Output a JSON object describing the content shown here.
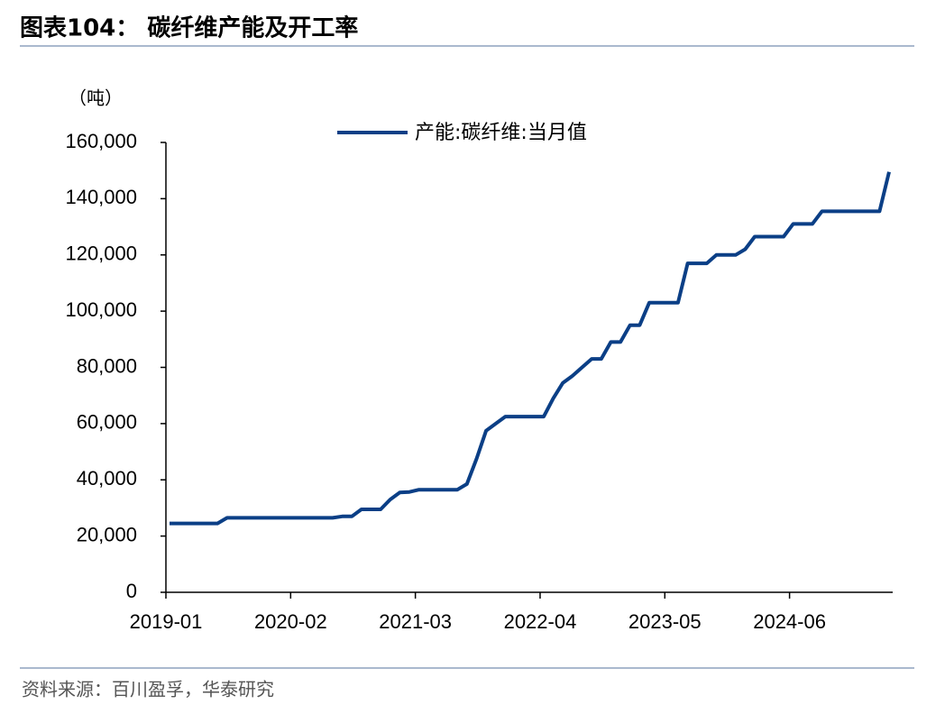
{
  "chart_data": {
    "type": "line",
    "title": "图表104： 碳纤维产能及开工率",
    "y_label": "（吨）",
    "source": "资料来源：百川盈孚，华泰研究",
    "categories": [
      "2019-01",
      null,
      null,
      null,
      null,
      null,
      null,
      null,
      null,
      null,
      null,
      null,
      null,
      "2020-02",
      null,
      null,
      null,
      null,
      null,
      null,
      null,
      null,
      null,
      null,
      null,
      null,
      "2021-03",
      null,
      null,
      null,
      null,
      null,
      null,
      null,
      null,
      null,
      null,
      null,
      null,
      "2022-04",
      null,
      null,
      null,
      null,
      null,
      null,
      null,
      null,
      null,
      null,
      null,
      null,
      "2023-05",
      null,
      null,
      null,
      null,
      null,
      null,
      null,
      null,
      null,
      null,
      null,
      null,
      "2024-06",
      null,
      null,
      null,
      null,
      null,
      null,
      null,
      null,
      null,
      null
    ],
    "series": [
      {
        "name": "产能:碳纤维:当月值",
        "color": "#0b3f86",
        "values": [
          24500,
          24500,
          24500,
          24500,
          24500,
          24500,
          26500,
          26500,
          26500,
          26500,
          26500,
          26500,
          26500,
          26500,
          26500,
          26500,
          26500,
          26500,
          27000,
          27000,
          29500,
          29500,
          29500,
          33000,
          35500,
          35700,
          36500,
          36500,
          36500,
          36500,
          36500,
          38500,
          47500,
          57500,
          60000,
          62500,
          62500,
          62500,
          62500,
          62500,
          69000,
          74500,
          77000,
          80000,
          83000,
          83000,
          89000,
          89000,
          95000,
          95000,
          103000,
          103000,
          103000,
          103000,
          117000,
          117000,
          117000,
          120000,
          120000,
          120000,
          122000,
          126500,
          126500,
          126500,
          126500,
          131000,
          131000,
          131000,
          135500,
          135500,
          135500,
          135500,
          135500,
          135500,
          135500,
          149500
        ]
      }
    ],
    "ylim": [
      0,
      160000
    ],
    "yticks": [
      0,
      {
        "value": 20000,
        "label": "20,000"
      },
      {
        "value": 40000,
        "label": "40,000"
      },
      {
        "value": 60000,
        "label": "60,000"
      },
      {
        "value": 80000,
        "label": "80,000"
      },
      {
        "value": 100000,
        "label": "100,000"
      },
      {
        "value": 120000,
        "label": "120,000"
      },
      {
        "value": 140000,
        "label": "140,000"
      },
      {
        "value": 160000,
        "label": "160,000"
      }
    ],
    "grid": false,
    "legend": "top"
  }
}
